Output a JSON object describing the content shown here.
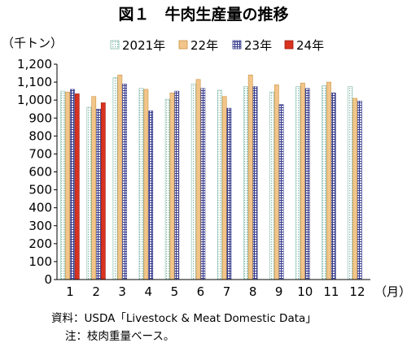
{
  "chart_data": {
    "type": "bar",
    "title": "図１　牛肉生産量の推移",
    "ylabel": "（千トン）",
    "xlabel": "（月）",
    "ylim": [
      0,
      1200
    ],
    "yticks": [
      "0",
      "100",
      "200",
      "300",
      "400",
      "500",
      "600",
      "700",
      "800",
      "900",
      "1,000",
      "1,100",
      "1,200"
    ],
    "categories": [
      "1",
      "2",
      "3",
      "4",
      "5",
      "6",
      "7",
      "8",
      "9",
      "10",
      "11",
      "12"
    ],
    "legend_position": "top",
    "grid": false,
    "series": [
      {
        "name": "2021年",
        "pattern": "dotted",
        "color": "#7fb8a8",
        "values": [
          1050,
          960,
          1125,
          1065,
          1005,
          1090,
          1055,
          1075,
          1045,
          1075,
          1080,
          1075
        ]
      },
      {
        "name": "22年",
        "pattern": "solid",
        "color": "#f2c58a",
        "values": [
          1045,
          1020,
          1140,
          1060,
          1040,
          1115,
          1020,
          1140,
          1085,
          1095,
          1100,
          1010
        ]
      },
      {
        "name": "23年",
        "pattern": "grid",
        "color": "#3b3f8f",
        "values": [
          1060,
          950,
          1090,
          940,
          1050,
          1065,
          955,
          1075,
          975,
          1065,
          1040,
          995
        ]
      },
      {
        "name": "24年",
        "pattern": "solid",
        "color": "#d9321e",
        "values": [
          1035,
          985,
          null,
          null,
          null,
          null,
          null,
          null,
          null,
          null,
          null,
          null
        ]
      }
    ]
  },
  "notes": {
    "source": "資料：USDA「Livestock & Meat Domestic Data」",
    "note": "注：枝肉重量ベース。"
  }
}
